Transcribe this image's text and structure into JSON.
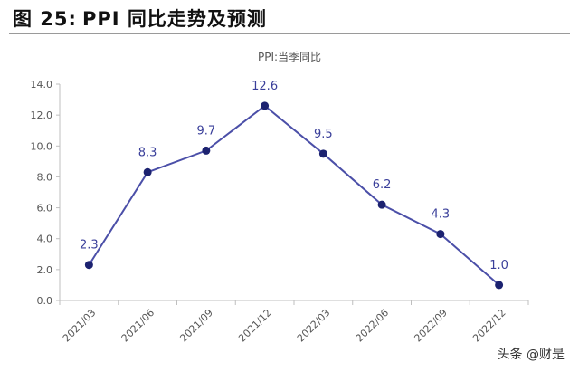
{
  "figure": {
    "number_label": "图 25:",
    "heading": "PPI 同比走势及预测"
  },
  "watermark": "头条 @财是",
  "colors": {
    "line": "#4b4fa8",
    "marker": "#1c2270",
    "data_label": "#3a3f9a",
    "axis": "#bfbfbf",
    "tick_text": "#555555"
  },
  "chart_data": {
    "type": "line",
    "title": "PPI:当季同比",
    "categories": [
      "2021/03",
      "2021/06",
      "2021/09",
      "2021/12",
      "2022/03",
      "2022/06",
      "2022/09",
      "2022/12"
    ],
    "series": [
      {
        "values": [
          2.3,
          8.3,
          9.7,
          12.6,
          9.5,
          6.2,
          4.3,
          1.0
        ]
      }
    ],
    "data_labels": [
      "2.3",
      "8.3",
      "9.7",
      "12.6",
      "9.5",
      "6.2",
      "4.3",
      "1.0"
    ],
    "y_ticks": [
      "0.0",
      "2.0",
      "4.0",
      "6.0",
      "8.0",
      "10.0",
      "12.0",
      "14.0"
    ],
    "ylim": [
      0,
      14
    ],
    "grid": false,
    "legend": "none"
  }
}
